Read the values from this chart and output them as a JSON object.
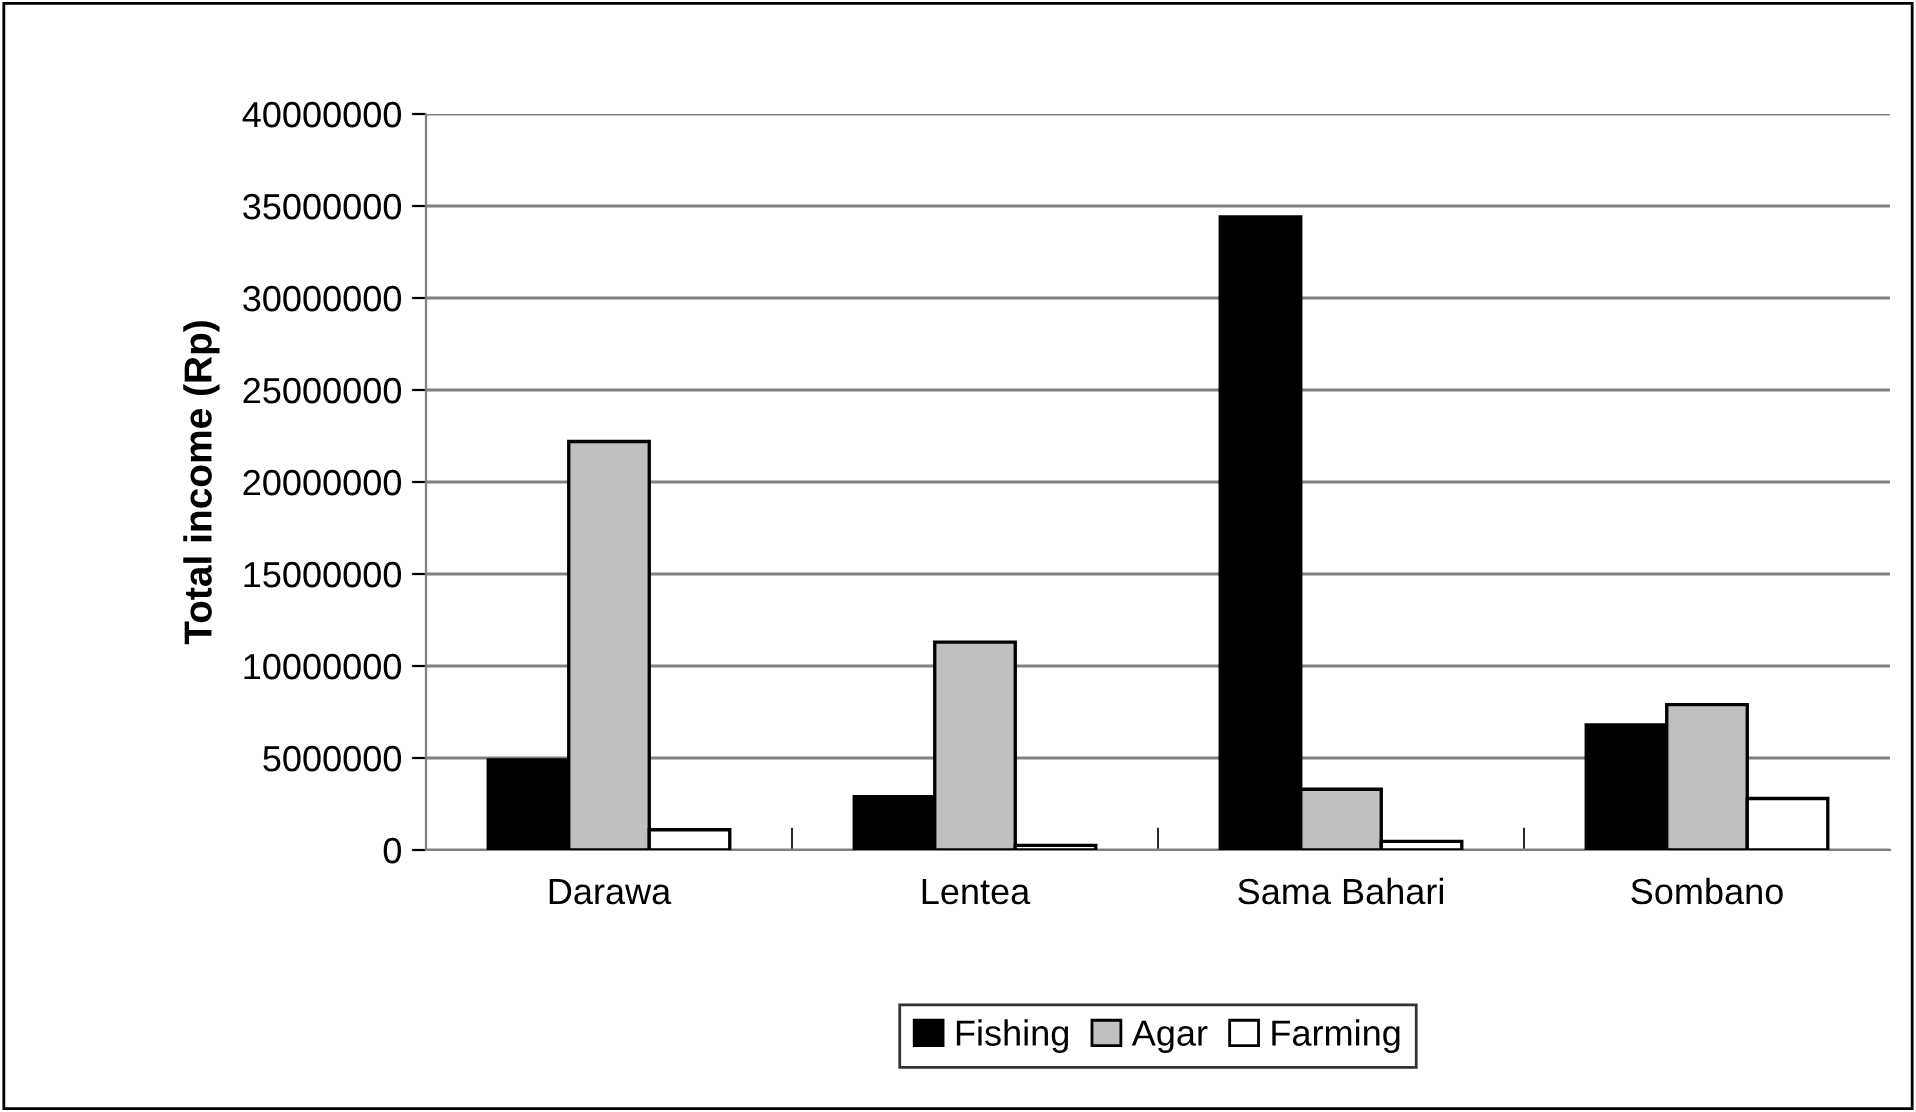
{
  "chart_data": {
    "type": "bar",
    "ylabel": "Total income (Rp)",
    "categories": [
      "Darawa",
      "Lentea",
      "Sama Bahari",
      "Sombano"
    ],
    "series": [
      {
        "name": "Fishing",
        "color": "#000000",
        "values": [
          4900000,
          2900000,
          34400000,
          6800000
        ]
      },
      {
        "name": "Agar",
        "color": "#c0c0c0",
        "values": [
          22200000,
          11300000,
          3300000,
          7900000
        ]
      },
      {
        "name": "Farming",
        "color": "#ffffff",
        "values": [
          1100000,
          250000,
          470000,
          2800000
        ]
      }
    ],
    "ylim": [
      0,
      40000000
    ],
    "yticks": [
      0,
      5000000,
      10000000,
      15000000,
      20000000,
      25000000,
      30000000,
      35000000,
      40000000
    ],
    "grid": "y",
    "legend": "bottom"
  }
}
